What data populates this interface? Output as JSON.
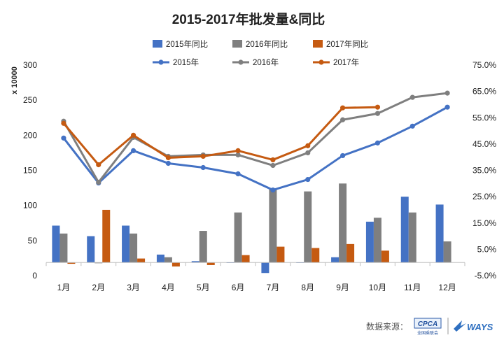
{
  "chart_data": {
    "type": "bar+line",
    "title": "2015-2017年批发量&同比",
    "y_unit_label": "x 10000",
    "categories": [
      "1月",
      "2月",
      "3月",
      "4月",
      "5月",
      "6月",
      "7月",
      "8月",
      "9月",
      "10月",
      "11月",
      "12月"
    ],
    "left_axis": {
      "min": 0,
      "max": 300,
      "ticks": [
        "0",
        "50",
        "100",
        "150",
        "200",
        "250",
        "300"
      ]
    },
    "right_axis": {
      "min": -5,
      "max": 75,
      "ticks": [
        "-5.0%",
        "5.0%",
        "15.0%",
        "25.0%",
        "35.0%",
        "45.0%",
        "55.0%",
        "65.0%",
        "75.0%"
      ]
    },
    "bar_series": [
      {
        "name": "2015年同比",
        "color": "#4472C4",
        "axis": "right",
        "values": [
          14.0,
          10.0,
          14.0,
          3.0,
          0.5,
          0,
          -4.0,
          0,
          2.0,
          15.5,
          25.0,
          22.0
        ]
      },
      {
        "name": "2016年同比",
        "color": "#7F7F7F",
        "axis": "right",
        "values": [
          11.0,
          -0.3,
          11.0,
          2.0,
          12.0,
          19.0,
          28.0,
          27.0,
          30.0,
          17.0,
          19.0,
          8.0
        ]
      },
      {
        "name": "2017年同比",
        "color": "#C55A11",
        "axis": "right",
        "values": [
          -0.5,
          20.0,
          1.5,
          -1.5,
          -1.0,
          2.8,
          6.0,
          5.5,
          7.0,
          4.5,
          null,
          null
        ]
      }
    ],
    "line_series": [
      {
        "name": "2015年",
        "color": "#4472C4",
        "axis": "left",
        "values": [
          196,
          132,
          178,
          160,
          154,
          145,
          122,
          137,
          171,
          189,
          213,
          240
        ]
      },
      {
        "name": "2016年",
        "color": "#7F7F7F",
        "axis": "left",
        "values": [
          220,
          133,
          197,
          170,
          172,
          172,
          157,
          175,
          222,
          231,
          254,
          260
        ]
      },
      {
        "name": "2017年",
        "color": "#C55A11",
        "axis": "left",
        "values": [
          217,
          158,
          200,
          168,
          170,
          178,
          165,
          185,
          239,
          240,
          null,
          null
        ]
      }
    ]
  },
  "source": {
    "label": "数据来源：",
    "logo1": "CPCA",
    "logo1_sub": "全国乘联会",
    "logo2": "WAYS"
  }
}
